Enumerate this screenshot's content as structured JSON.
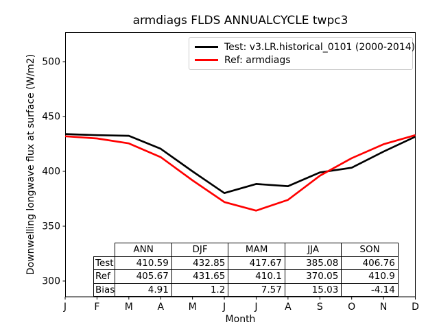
{
  "title": "armdiags FLDS ANNUALCYCLE twpc3",
  "chart_data": {
    "type": "line",
    "title": "armdiags FLDS ANNUALCYCLE twpc3",
    "xlabel": "Month",
    "ylabel": "Downwelling longwave flux at surface (W/m2)",
    "categories": [
      "J",
      "F",
      "M",
      "A",
      "M",
      "J",
      "J",
      "A",
      "S",
      "O",
      "N",
      "D"
    ],
    "yticks": [
      300,
      350,
      400,
      450,
      500
    ],
    "ylim": [
      286,
      527
    ],
    "grid": false,
    "legend_position": "upper right",
    "series": [
      {
        "name": "Test: v3.LR.historical_0101 (2000-2014)",
        "color": "#000000",
        "values": [
          434.0,
          433.0,
          432.4,
          420.6,
          400.0,
          380.2,
          388.5,
          386.5,
          399.0,
          403.3,
          418.0,
          431.6
        ]
      },
      {
        "name": "Ref: armdiags",
        "color": "#ff0000",
        "values": [
          432.0,
          430.0,
          425.5,
          413.0,
          391.8,
          372.0,
          364.2,
          374.0,
          396.0,
          412.0,
          424.7,
          433.0
        ]
      }
    ]
  },
  "stats_table": {
    "columns": [
      "ANN",
      "DJF",
      "MAM",
      "JJA",
      "SON"
    ],
    "rows": [
      {
        "label": "Test",
        "values": [
          "410.59",
          "432.85",
          "417.67",
          "385.08",
          "406.76"
        ]
      },
      {
        "label": "Ref",
        "values": [
          "405.67",
          "431.65",
          "410.1",
          "370.05",
          "410.9"
        ]
      },
      {
        "label": "Bias",
        "values": [
          "4.91",
          "1.2",
          "7.57",
          "15.03",
          "-4.14"
        ]
      }
    ]
  }
}
